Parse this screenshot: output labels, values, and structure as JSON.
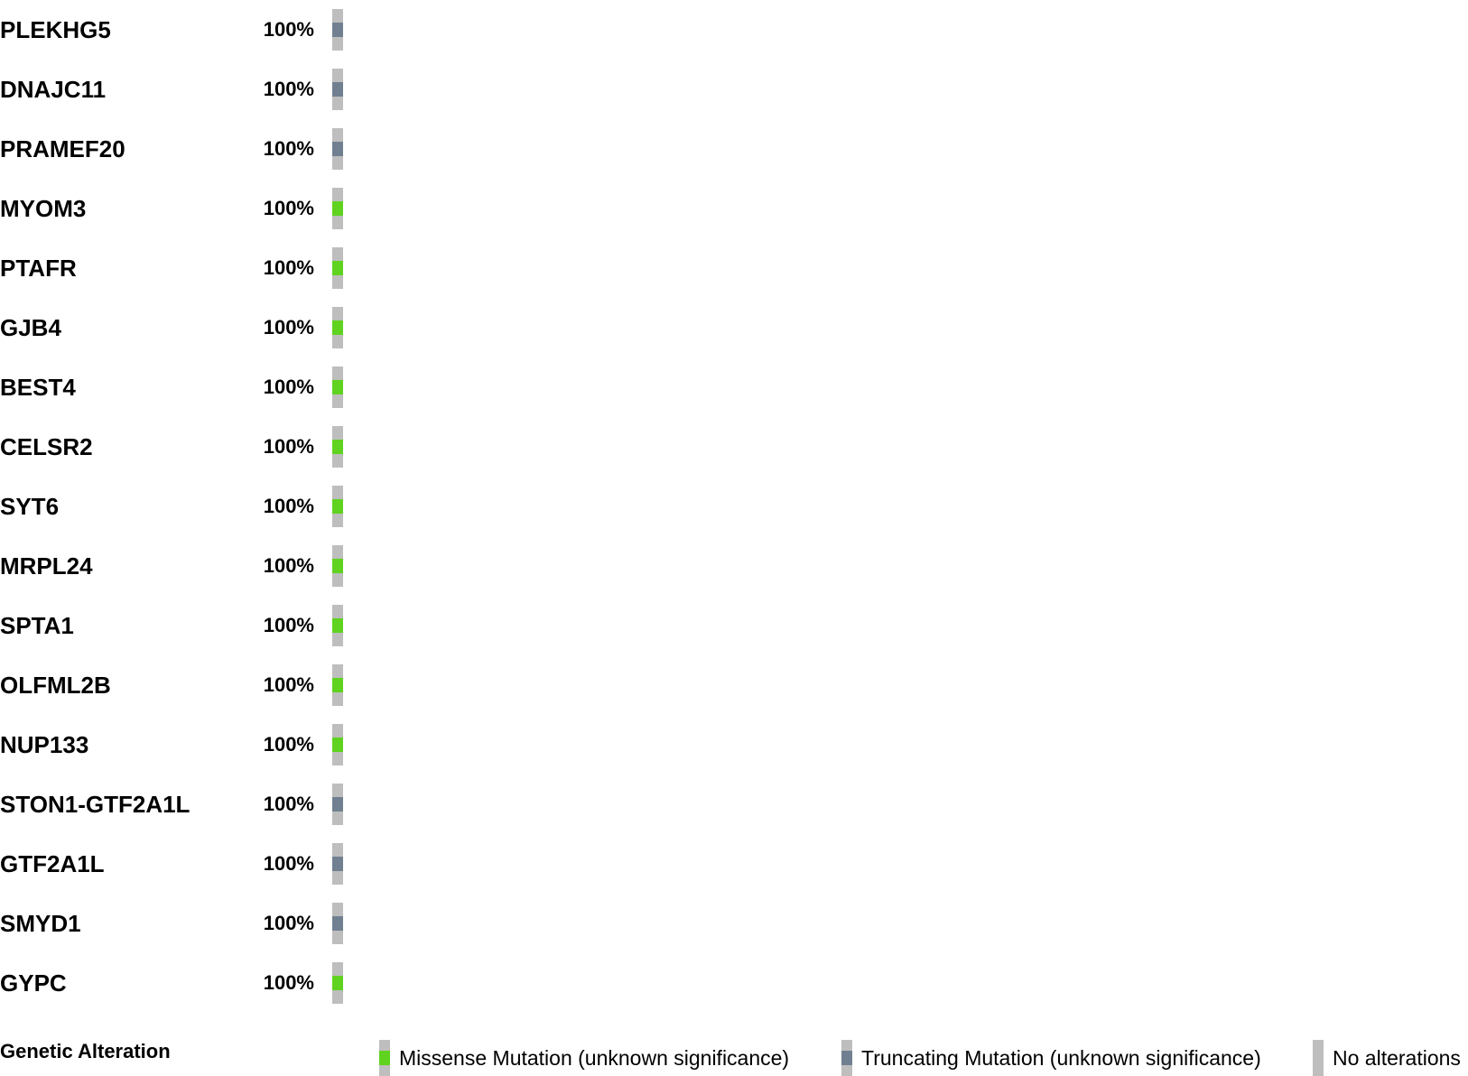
{
  "chart_data": {
    "type": "oncoprint",
    "title": "",
    "samples_count": 1,
    "genes": [
      {
        "gene": "PLEKHG5",
        "percent": "100%",
        "alteration": "truncating"
      },
      {
        "gene": "DNAJC11",
        "percent": "100%",
        "alteration": "truncating"
      },
      {
        "gene": "PRAMEF20",
        "percent": "100%",
        "alteration": "truncating"
      },
      {
        "gene": "MYOM3",
        "percent": "100%",
        "alteration": "missense"
      },
      {
        "gene": "PTAFR",
        "percent": "100%",
        "alteration": "missense"
      },
      {
        "gene": "GJB4",
        "percent": "100%",
        "alteration": "missense"
      },
      {
        "gene": "BEST4",
        "percent": "100%",
        "alteration": "missense"
      },
      {
        "gene": "CELSR2",
        "percent": "100%",
        "alteration": "missense"
      },
      {
        "gene": "SYT6",
        "percent": "100%",
        "alteration": "missense"
      },
      {
        "gene": "MRPL24",
        "percent": "100%",
        "alteration": "missense"
      },
      {
        "gene": "SPTA1",
        "percent": "100%",
        "alteration": "missense"
      },
      {
        "gene": "OLFML2B",
        "percent": "100%",
        "alteration": "missense"
      },
      {
        "gene": "NUP133",
        "percent": "100%",
        "alteration": "missense"
      },
      {
        "gene": "STON1-GTF2A1L",
        "percent": "100%",
        "alteration": "truncating"
      },
      {
        "gene": "GTF2A1L",
        "percent": "100%",
        "alteration": "truncating"
      },
      {
        "gene": "SMYD1",
        "percent": "100%",
        "alteration": "truncating"
      },
      {
        "gene": "GYPC",
        "percent": "100%",
        "alteration": "missense"
      }
    ],
    "legend": {
      "title": "Genetic Alteration",
      "items": [
        {
          "key": "missense",
          "label": "Missense Mutation (unknown significance)",
          "color": "#5fd31f"
        },
        {
          "key": "truncating",
          "label": "Truncating Mutation (unknown significance)",
          "color": "#708090"
        },
        {
          "key": "none",
          "label": "No alterations",
          "color": "#bebebe"
        }
      ]
    }
  },
  "colors": {
    "missense": "#5fd31f",
    "truncating": "#708090",
    "background": "#bebebe"
  }
}
